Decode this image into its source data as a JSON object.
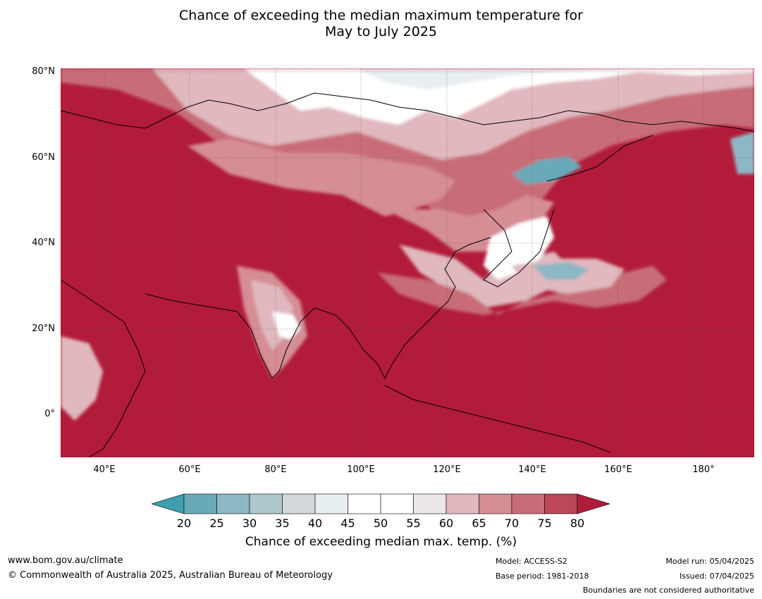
{
  "title": {
    "line1": "Chance of exceeding the median maximum temperature for",
    "line2": "May to July 2025"
  },
  "map": {
    "lat_labels": [
      "80°N",
      "60°N",
      "40°N",
      "20°N",
      "0°"
    ],
    "lon_labels": [
      "40°E",
      "60°E",
      "80°E",
      "100°E",
      "120°E",
      "140°E",
      "160°E",
      "180°"
    ],
    "colors": {
      "lt20": "#3f9fae",
      "c20": "#6aa9b8",
      "c25": "#8db7c4",
      "c30": "#adc7cd",
      "c35": "#d3d9da",
      "c40": "#e8eff1",
      "c45": "#ffffff",
      "c50": "#ffffff",
      "c55": "#ece8ea",
      "c60": "#e0b8be",
      "c65": "#d58d96",
      "c70": "#c86d78",
      "c75": "#bc4757",
      "gt80": "#b21c3a"
    }
  },
  "colorbar": {
    "ticks": [
      "20",
      "25",
      "30",
      "35",
      "40",
      "45",
      "50",
      "55",
      "60",
      "65",
      "70",
      "75",
      "80"
    ],
    "title": "Chance of exceeding median max. temp. (%)"
  },
  "footer": {
    "website": "www.bom.gov.au/climate",
    "copyright": "© Commonwealth of Australia 2025, Australian Bureau of Meteorology",
    "model": "Model: ACCESS-S2",
    "base_period": "Base period: 1981-2018",
    "model_run": "Model run: 05/04/2025",
    "issued": "Issued: 07/04/2025",
    "disclaimer": "Boundaries are not considered authoritative"
  }
}
